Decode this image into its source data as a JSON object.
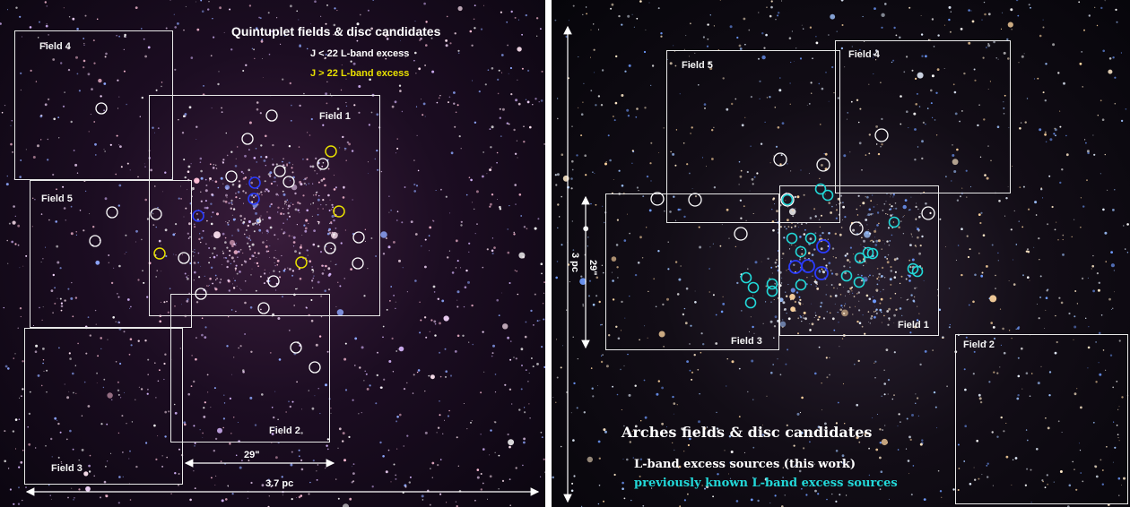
{
  "left_panel": {
    "title": "Quintuplet fields & disc candidates",
    "legend_white": "J < 22 L-band excess",
    "legend_yellow": "J > 22 L-band excess",
    "fields": [
      "Field 1",
      "Field 2",
      "Field 3",
      "Field 4",
      "Field 5"
    ],
    "scale_short": "29\"",
    "scale_long": "3.7 pc",
    "colors": {
      "white_marker": "#ffffff",
      "yellow_marker": "#e8e000",
      "blue_marker": "#2a3cff"
    }
  },
  "right_panel": {
    "title": "Arches fields & disc candidates",
    "legend_white": "L-band excess sources (this work)",
    "legend_cyan": "previously known L-band excess sources",
    "fields": [
      "Field 1",
      "Field 2",
      "Field 3",
      "Field 4",
      "Field 5"
    ],
    "scale_short": "29\"",
    "scale_long": "3 pc",
    "colors": {
      "white_marker": "#ffffff",
      "cyan_marker": "#22d8d8",
      "blue_marker": "#2a3cff"
    }
  }
}
